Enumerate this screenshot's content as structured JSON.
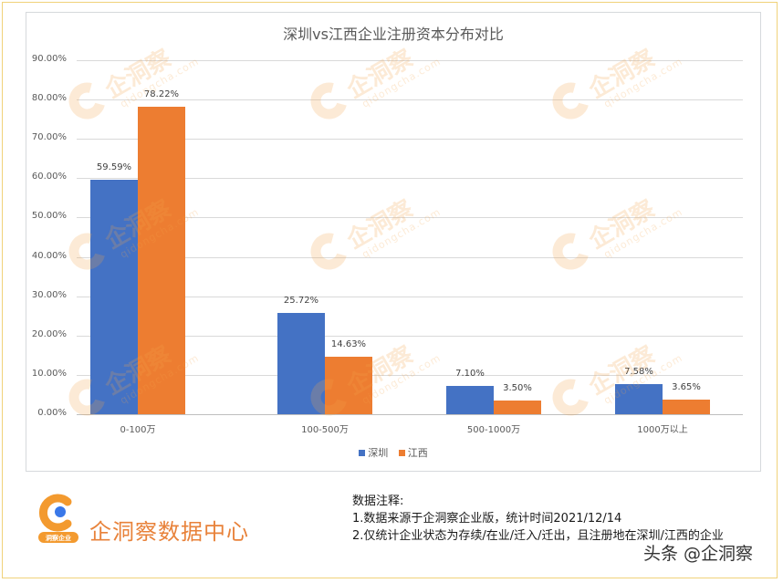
{
  "chart_data": {
    "type": "bar",
    "title": "深圳vs江西企业注册资本分布对比",
    "categories": [
      "0-100万",
      "100-500万",
      "500-1000万",
      "1000万以上"
    ],
    "series": [
      {
        "name": "深圳",
        "color": "#4472c4",
        "values": [
          59.59,
          25.72,
          7.1,
          7.58
        ],
        "labels": [
          "59.59%",
          "25.72%",
          "7.10%",
          "7.58%"
        ]
      },
      {
        "name": "江西",
        "color": "#ed7d31",
        "values": [
          78.22,
          14.63,
          3.5,
          3.65
        ],
        "labels": [
          "78.22%",
          "14.63%",
          "3.50%",
          "3.65%"
        ]
      }
    ],
    "xlabel": "",
    "ylabel": "",
    "ylim": [
      0,
      90
    ],
    "yticks": [
      "0.00%",
      "10.00%",
      "20.00%",
      "30.00%",
      "40.00%",
      "50.00%",
      "60.00%",
      "70.00%",
      "80.00%",
      "90.00%"
    ],
    "grid": true,
    "legend_position": "bottom"
  },
  "watermark": {
    "brand": "企洞察",
    "domain": "qidongcha.com"
  },
  "footer": {
    "logo_badge": "洞察企业",
    "brand_name": "企洞察数据中心",
    "notes_title": "数据注释:",
    "note_1": "1.数据来源于企洞察企业版，统计时间2021/12/14",
    "note_2": "2.仅统计企业状态为存续/在业/迁入/迁出，且注册地在深圳/江西的企业",
    "credit": "头条 @企洞察"
  },
  "colors": {
    "shenzhen": "#4472c4",
    "jiangxi": "#ed7d31",
    "brand_orange": "#e8823a",
    "frame": "#f0d27a"
  }
}
